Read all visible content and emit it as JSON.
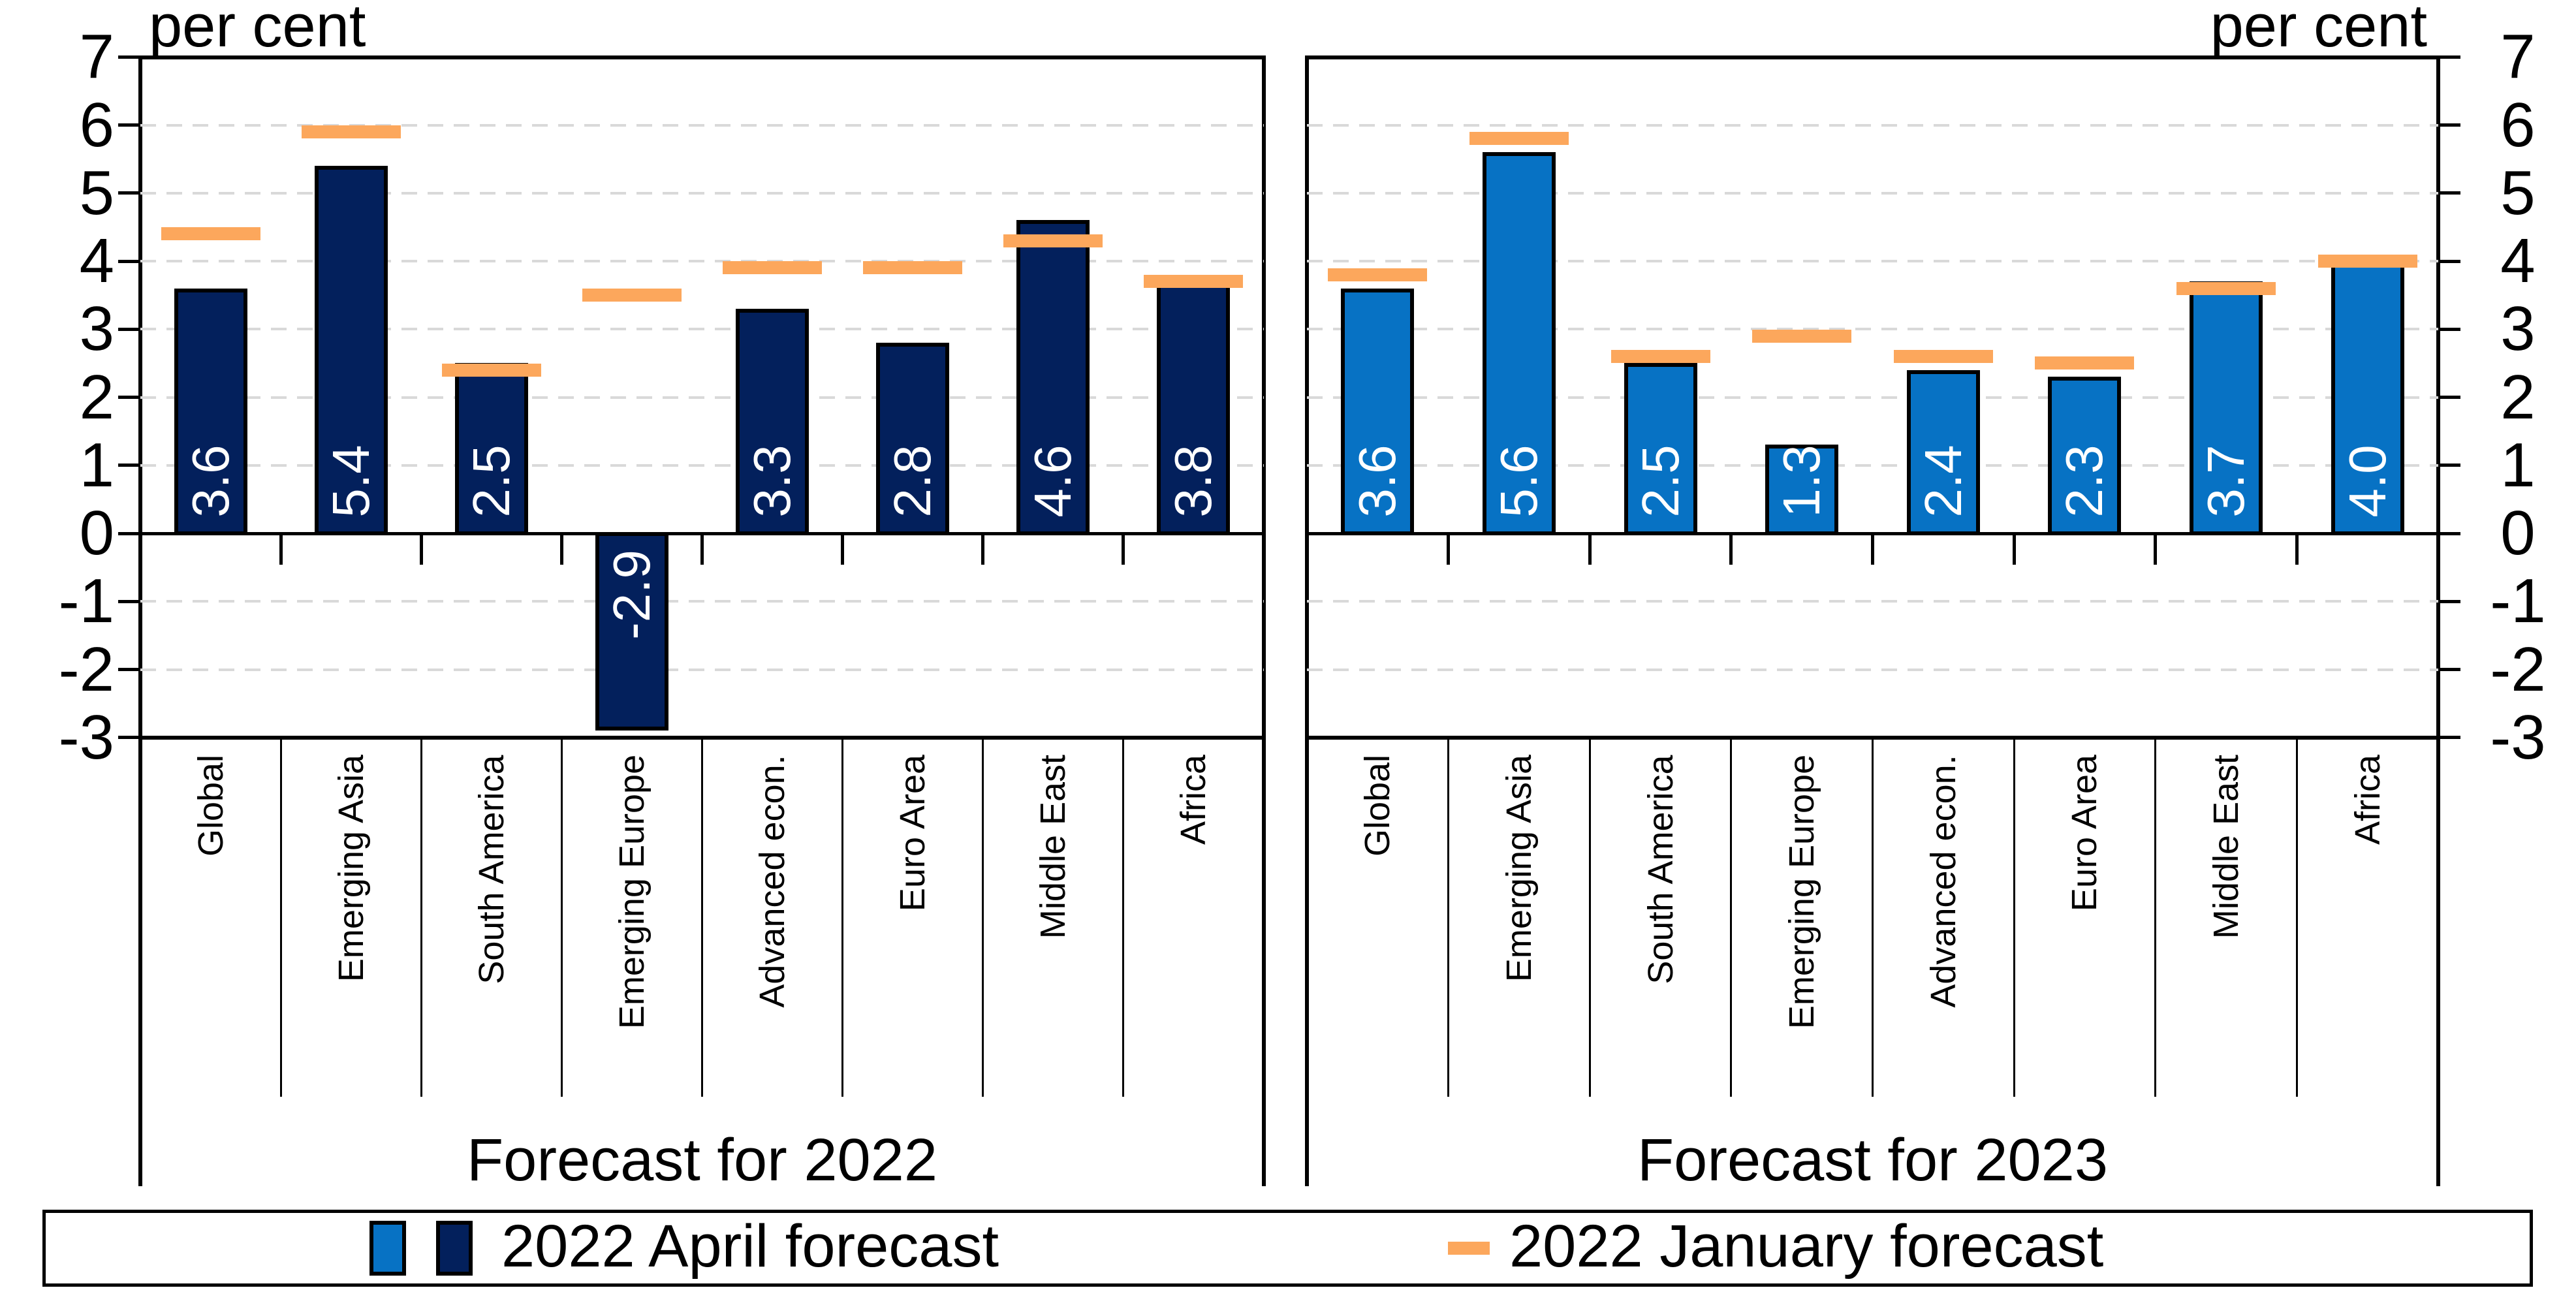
{
  "unit_label_left": "per cent",
  "unit_label_right": "per cent",
  "legend": {
    "april_label": "2022 April forecast",
    "january_label": "2022 January forecast"
  },
  "colors": {
    "april_2022_bar": "#03205C",
    "april_2023_bar": "#0772C4",
    "january_dash": "#FCA75C",
    "gridline": "#D9D9D9",
    "axis": "#000000",
    "bar_value_text": "#FFFFFF"
  },
  "chart_data": {
    "type": "bar",
    "categories": [
      "Global",
      "Emerging Asia",
      "South America",
      "Emerging Europe",
      "Advanced econ.",
      "Euro Area",
      "Middle East",
      "Africa"
    ],
    "ylabel": "per cent",
    "ylim": [
      -3,
      7
    ],
    "yticks": [
      7,
      6,
      5,
      4,
      3,
      2,
      1,
      0,
      -1,
      -2,
      -3
    ],
    "gridline_values": [
      6,
      5,
      4,
      3,
      2,
      1,
      -1,
      -2
    ],
    "grid": "dashed",
    "legend_position": "bottom",
    "panels": [
      {
        "title": "Forecast for 2022",
        "series": [
          {
            "name": "2022 April forecast",
            "style": "bar",
            "color": "#03205C",
            "values": [
              3.6,
              5.4,
              2.5,
              -2.9,
              3.3,
              2.8,
              4.6,
              3.8
            ],
            "labels": [
              "3.6",
              "5.4",
              "2.5",
              "-2.9",
              "3.3",
              "2.8",
              "4.6",
              "3.8"
            ]
          },
          {
            "name": "2022 January forecast",
            "style": "dash",
            "color": "#FCA75C",
            "values": [
              4.4,
              5.9,
              2.4,
              3.5,
              3.9,
              3.9,
              4.3,
              3.7
            ]
          }
        ]
      },
      {
        "title": "Forecast for 2023",
        "series": [
          {
            "name": "2022 April forecast",
            "style": "bar",
            "color": "#0772C4",
            "values": [
              3.6,
              5.6,
              2.5,
              1.3,
              2.4,
              2.3,
              3.7,
              4.0
            ],
            "labels": [
              "3.6",
              "5.6",
              "2.5",
              "1.3",
              "2.4",
              "2.3",
              "3.7",
              "4.0"
            ]
          },
          {
            "name": "2022 January forecast",
            "style": "dash",
            "color": "#FCA75C",
            "values": [
              3.8,
              5.8,
              2.6,
              2.9,
              2.6,
              2.5,
              3.6,
              4.0
            ]
          }
        ]
      }
    ]
  }
}
